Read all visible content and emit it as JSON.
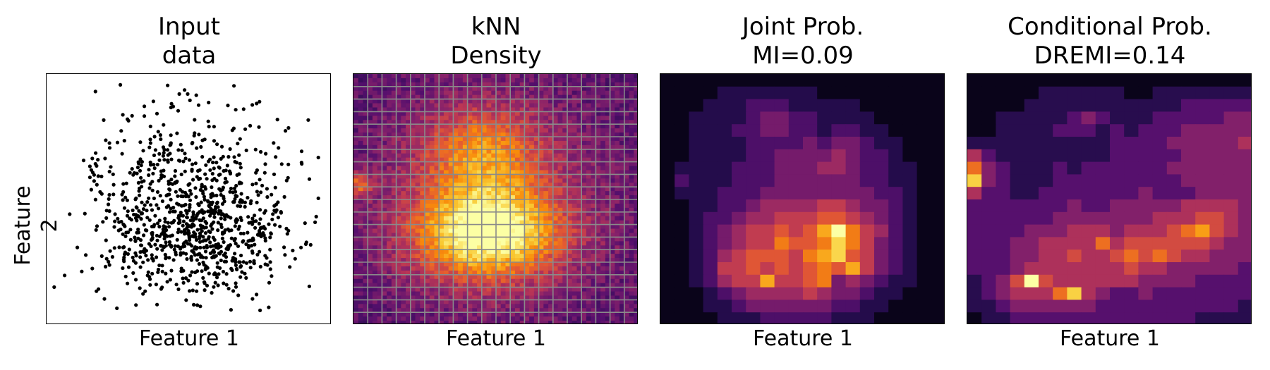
{
  "figure": {
    "ylabel": "Feature 2",
    "panels": [
      {
        "title_line1": "Input",
        "title_line2": "data",
        "xlabel": "Feature 1"
      },
      {
        "title_line1": "kNN",
        "title_line2": "Density",
        "xlabel": "Feature 1"
      },
      {
        "title_line1": "Joint Prob.",
        "title_line2": "MI=0.09",
        "xlabel": "Feature 1"
      },
      {
        "title_line1": "Conditional Prob.",
        "title_line2": "DREMI=0.14",
        "xlabel": "Feature 1"
      }
    ]
  },
  "chart_data": [
    {
      "type": "scatter",
      "title": "Input data",
      "xlabel": "Feature 1",
      "ylabel": "Feature 2",
      "xlim": [
        0,
        20
      ],
      "ylim": [
        0,
        20
      ],
      "ticks_visible": false,
      "marker_color": "#000000",
      "n_points": 1000,
      "notes_visible": "dense cloud centred lower-middle, with a small clump near left edge",
      "points": [
        [
          3.2,
          11.5
        ],
        [
          3.0,
          12.4
        ],
        [
          3.3,
          12.9
        ],
        [
          2.9,
          11.8
        ],
        [
          3.1,
          12.2
        ],
        [
          3.4,
          11.2
        ],
        [
          3.0,
          10.8
        ],
        [
          2.9,
          12.7
        ],
        [
          3.2,
          12.0
        ],
        [
          3.5,
          11.9
        ],
        [
          19.1,
          8.6
        ],
        [
          18.4,
          6.5
        ],
        [
          18.7,
          6.3
        ],
        [
          16.8,
          6.1
        ],
        [
          16.4,
          14.2
        ],
        [
          16.9,
          15.6
        ],
        [
          15.0,
          15.9
        ],
        [
          9.3,
          18.6
        ],
        [
          9.9,
          18.6
        ],
        [
          3.3,
          18.8
        ],
        [
          8.7,
          14.6
        ],
        [
          13.0,
          1.0
        ],
        [
          15.7,
          1.2
        ],
        [
          6.7,
          2.3
        ],
        [
          4.6,
          11.2
        ],
        [
          4.3,
          14.6
        ],
        [
          6.8,
          16.8
        ],
        [
          11.4,
          17.9
        ],
        [
          8.7,
          17.5
        ],
        [
          7.7,
          17.0
        ],
        [
          6.0,
          4.0
        ],
        [
          7.2,
          3.5
        ],
        [
          8.3,
          5.5
        ],
        [
          9.0,
          6.2
        ],
        [
          10.2,
          5.8
        ],
        [
          11.5,
          6.5
        ],
        [
          12.4,
          7.3
        ],
        [
          13.3,
          6.8
        ],
        [
          9.8,
          7.6
        ],
        [
          8.5,
          8.1
        ],
        [
          7.3,
          6.7
        ],
        [
          6.5,
          5.3
        ],
        [
          10.8,
          8.3
        ],
        [
          11.9,
          9.0
        ],
        [
          12.8,
          8.6
        ],
        [
          14.0,
          9.4
        ],
        [
          13.6,
          7.8
        ],
        [
          14.6,
          6.7
        ],
        [
          15.1,
          8.4
        ],
        [
          10.5,
          10.2
        ],
        [
          9.1,
          11.4
        ],
        [
          8.0,
          12.3
        ],
        [
          11.2,
          12.8
        ],
        [
          12.6,
          11.7
        ],
        [
          13.7,
          12.6
        ],
        [
          14.8,
          11.3
        ],
        [
          15.6,
          10.2
        ],
        [
          16.1,
          9.1
        ],
        [
          7.1,
          10.1
        ],
        [
          6.4,
          8.6
        ],
        [
          5.5,
          7.3
        ],
        [
          5.0,
          6.1
        ],
        [
          4.7,
          8.8
        ],
        [
          5.2,
          10.4
        ],
        [
          6.0,
          12.0
        ],
        [
          7.5,
          13.6
        ],
        [
          9.5,
          14.0
        ],
        [
          10.7,
          15.3
        ],
        [
          12.0,
          14.5
        ],
        [
          13.2,
          15.8
        ],
        [
          14.1,
          14.0
        ],
        [
          11.0,
          3.6
        ],
        [
          12.2,
          4.4
        ],
        [
          9.6,
          3.2
        ],
        [
          8.0,
          2.7
        ],
        [
          13.9,
          4.9
        ],
        [
          14.9,
          5.5
        ],
        [
          15.8,
          6.9
        ],
        [
          16.5,
          7.8
        ],
        [
          10.0,
          9.1
        ]
      ]
    },
    {
      "type": "heatmap",
      "title": "kNN Density",
      "xlabel": "Feature 1",
      "colormap": "inferno",
      "grid_overlay": true,
      "grid_color": "#8a8a8a",
      "grid_size": [
        20,
        20
      ],
      "ticks_visible": false
    },
    {
      "type": "heatmap",
      "title": "Joint Prob.",
      "subtitle": "MI=0.09",
      "xlabel": "Feature 1",
      "colormap": "inferno",
      "grid_size": [
        20,
        20
      ],
      "ticks_visible": false,
      "values": [
        [
          0,
          0,
          0,
          0,
          0,
          0,
          0,
          0,
          0,
          0,
          0,
          0,
          0,
          0,
          0,
          0,
          0,
          0,
          0,
          0
        ],
        [
          0,
          0,
          0,
          0,
          1,
          1,
          1,
          1,
          1,
          1,
          1,
          0,
          0,
          0,
          0,
          0,
          0,
          0,
          0,
          0
        ],
        [
          0,
          0,
          0,
          1,
          1,
          1,
          2,
          2,
          2,
          1,
          1,
          1,
          1,
          1,
          0,
          0,
          0,
          0,
          0,
          0
        ],
        [
          0,
          0,
          1,
          1,
          1,
          1,
          2,
          3,
          3,
          2,
          2,
          1,
          1,
          1,
          1,
          0,
          0,
          0,
          0,
          0
        ],
        [
          0,
          0,
          1,
          1,
          1,
          2,
          2,
          3,
          3,
          2,
          2,
          1,
          2,
          2,
          1,
          1,
          0,
          0,
          0,
          0
        ],
        [
          0,
          0,
          1,
          1,
          1,
          1,
          2,
          2,
          2,
          2,
          3,
          2,
          3,
          3,
          2,
          1,
          1,
          0,
          0,
          0
        ],
        [
          0,
          0,
          1,
          1,
          1,
          1,
          2,
          2,
          3,
          3,
          3,
          3,
          4,
          3,
          2,
          2,
          1,
          0,
          0,
          0
        ],
        [
          0,
          1,
          1,
          1,
          1,
          2,
          2,
          2,
          3,
          3,
          3,
          4,
          4,
          3,
          2,
          2,
          1,
          1,
          0,
          0
        ],
        [
          0,
          2,
          1,
          1,
          1,
          2,
          2,
          2,
          3,
          3,
          3,
          3,
          3,
          3,
          2,
          2,
          1,
          1,
          0,
          0
        ],
        [
          0,
          1,
          1,
          1,
          2,
          2,
          2,
          3,
          3,
          3,
          3,
          3,
          3,
          3,
          3,
          2,
          2,
          1,
          0,
          0
        ],
        [
          0,
          0,
          1,
          1,
          2,
          2,
          3,
          4,
          4,
          4,
          4,
          5,
          5,
          4,
          3,
          3,
          2,
          1,
          0,
          0
        ],
        [
          0,
          0,
          1,
          2,
          2,
          3,
          4,
          4,
          5,
          5,
          5,
          6,
          6,
          5,
          4,
          3,
          2,
          1,
          0,
          0
        ],
        [
          0,
          0,
          1,
          2,
          3,
          4,
          5,
          5,
          6,
          5,
          6,
          8,
          10,
          7,
          5,
          4,
          2,
          1,
          0,
          0
        ],
        [
          0,
          0,
          1,
          2,
          3,
          4,
          5,
          5,
          7,
          6,
          6,
          7,
          9,
          7,
          5,
          3,
          2,
          1,
          0,
          0
        ],
        [
          0,
          0,
          1,
          2,
          4,
          5,
          6,
          6,
          6,
          5,
          7,
          8,
          9,
          6,
          5,
          3,
          2,
          1,
          0,
          0
        ],
        [
          0,
          0,
          1,
          2,
          5,
          5,
          6,
          5,
          6,
          5,
          6,
          7,
          6,
          8,
          5,
          3,
          2,
          1,
          0,
          0
        ],
        [
          0,
          0,
          1,
          2,
          4,
          5,
          5,
          8,
          5,
          5,
          6,
          7,
          3,
          4,
          3,
          2,
          1,
          1,
          0,
          0
        ],
        [
          0,
          0,
          0,
          1,
          2,
          3,
          4,
          4,
          4,
          4,
          5,
          4,
          3,
          3,
          2,
          1,
          1,
          0,
          0,
          0
        ],
        [
          0,
          0,
          0,
          1,
          1,
          2,
          3,
          3,
          3,
          3,
          3,
          3,
          2,
          2,
          1,
          1,
          0,
          0,
          0,
          0
        ],
        [
          0,
          0,
          0,
          0,
          1,
          1,
          1,
          2,
          2,
          2,
          2,
          2,
          1,
          1,
          1,
          0,
          0,
          0,
          0,
          0
        ]
      ]
    },
    {
      "type": "heatmap",
      "title": "Conditional Prob.",
      "subtitle": "DREMI=0.14",
      "xlabel": "Feature 1",
      "colormap": "inferno",
      "grid_size": [
        20,
        20
      ],
      "ticks_visible": false,
      "values": [
        [
          0,
          0,
          0,
          0,
          0,
          0,
          0,
          0,
          0,
          0,
          0,
          0,
          0,
          0,
          0,
          0,
          0,
          0,
          0,
          0
        ],
        [
          0,
          0,
          0,
          0,
          0,
          1,
          1,
          1,
          1,
          1,
          1,
          0,
          0,
          1,
          1,
          1,
          1,
          1,
          1,
          1
        ],
        [
          0,
          0,
          0,
          0,
          1,
          1,
          1,
          1,
          1,
          1,
          1,
          1,
          1,
          1,
          1,
          2,
          2,
          2,
          2,
          2
        ],
        [
          0,
          0,
          1,
          1,
          1,
          1,
          1,
          2,
          3,
          2,
          1,
          1,
          1,
          2,
          2,
          2,
          2,
          2,
          3,
          3
        ],
        [
          0,
          0,
          1,
          1,
          1,
          1,
          2,
          2,
          2,
          1,
          2,
          1,
          2,
          2,
          2,
          3,
          3,
          3,
          3,
          3
        ],
        [
          1,
          1,
          1,
          1,
          1,
          1,
          1,
          1,
          1,
          1,
          2,
          2,
          2,
          2,
          3,
          3,
          3,
          3,
          3,
          4
        ],
        [
          4,
          2,
          1,
          1,
          1,
          1,
          1,
          1,
          1,
          1,
          2,
          2,
          2,
          2,
          2,
          3,
          3,
          3,
          3,
          3
        ],
        [
          6,
          3,
          2,
          1,
          1,
          1,
          2,
          1,
          2,
          2,
          2,
          2,
          2,
          2,
          3,
          3,
          3,
          3,
          3,
          3
        ],
        [
          8,
          3,
          2,
          1,
          1,
          1,
          2,
          2,
          2,
          2,
          2,
          2,
          2,
          2,
          2,
          3,
          3,
          3,
          3,
          3
        ],
        [
          4,
          2,
          2,
          1,
          1,
          2,
          2,
          2,
          2,
          2,
          2,
          2,
          3,
          2,
          2,
          2,
          3,
          3,
          3,
          3
        ],
        [
          2,
          2,
          2,
          2,
          2,
          2,
          2,
          3,
          2,
          2,
          3,
          3,
          3,
          3,
          3,
          4,
          4,
          4,
          4,
          3
        ],
        [
          2,
          2,
          2,
          2,
          2,
          2,
          3,
          3,
          3,
          3,
          3,
          3,
          3,
          4,
          4,
          4,
          5,
          5,
          4,
          3
        ],
        [
          2,
          2,
          2,
          2,
          3,
          3,
          3,
          4,
          4,
          4,
          3,
          4,
          4,
          4,
          5,
          6,
          7,
          5,
          4,
          3
        ],
        [
          2,
          2,
          2,
          3,
          3,
          4,
          4,
          4,
          4,
          6,
          4,
          5,
          5,
          5,
          5,
          5,
          5,
          4,
          3,
          3
        ],
        [
          2,
          2,
          2,
          3,
          3,
          4,
          4,
          5,
          4,
          4,
          5,
          6,
          5,
          6,
          5,
          4,
          4,
          3,
          3,
          3
        ],
        [
          2,
          2,
          2,
          3,
          4,
          4,
          4,
          4,
          4,
          4,
          4,
          5,
          4,
          4,
          3,
          3,
          3,
          3,
          3,
          2
        ],
        [
          1,
          2,
          3,
          5,
          9,
          5,
          4,
          4,
          4,
          4,
          4,
          4,
          3,
          3,
          3,
          3,
          2,
          2,
          2,
          2
        ],
        [
          1,
          2,
          3,
          4,
          4,
          4,
          6,
          8,
          4,
          3,
          2,
          2,
          3,
          2,
          2,
          2,
          2,
          2,
          2,
          2
        ],
        [
          1,
          1,
          2,
          3,
          3,
          3,
          3,
          3,
          3,
          2,
          2,
          2,
          2,
          2,
          2,
          2,
          2,
          2,
          2,
          1
        ],
        [
          0,
          1,
          1,
          2,
          2,
          2,
          2,
          2,
          2,
          2,
          2,
          2,
          2,
          2,
          2,
          2,
          1,
          1,
          1,
          1
        ]
      ]
    }
  ]
}
